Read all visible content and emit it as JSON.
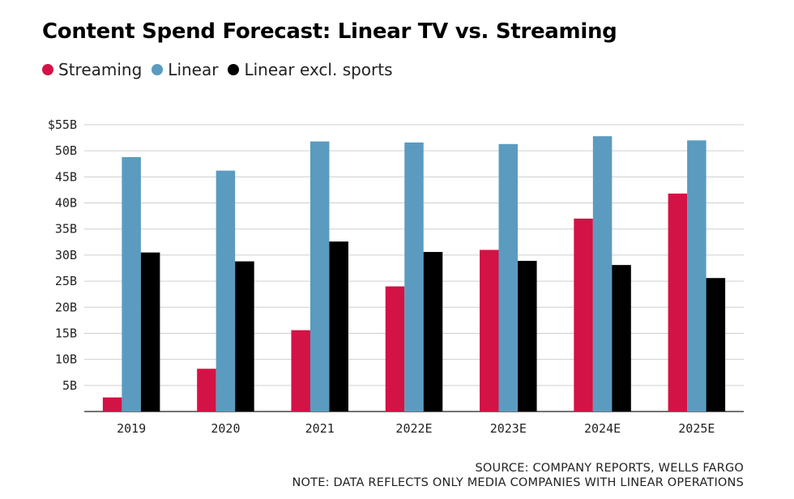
{
  "chart_data": {
    "type": "bar",
    "title": "Content Spend Forecast: Linear TV vs. Streaming",
    "categories": [
      "2019",
      "2020",
      "2021",
      "2022E",
      "2023E",
      "2024E",
      "2025E"
    ],
    "series": [
      {
        "name": "Streaming",
        "color": "#d31245",
        "values": [
          2.7,
          8.2,
          15.6,
          24.0,
          31.0,
          37.0,
          41.8
        ]
      },
      {
        "name": "Linear",
        "color": "#5b9bc0",
        "values": [
          48.8,
          46.2,
          51.8,
          51.6,
          51.3,
          52.8,
          52.0
        ]
      },
      {
        "name": "Linear excl. sports",
        "color": "#000000",
        "values": [
          30.5,
          28.8,
          32.6,
          30.6,
          28.9,
          28.1,
          25.6
        ]
      }
    ],
    "y_ticks": [
      "5B",
      "10B",
      "15B",
      "20B",
      "25B",
      "30B",
      "35B",
      "40B",
      "45B",
      "50B",
      "$55B"
    ],
    "y_tick_values": [
      5,
      10,
      15,
      20,
      25,
      30,
      35,
      40,
      45,
      50,
      55
    ],
    "ylim": [
      0,
      55
    ],
    "xlabel": "",
    "ylabel": "",
    "grid": true,
    "legend_position": "top-left"
  },
  "notes": {
    "source": "SOURCE: COMPANY REPORTS, WELLS FARGO",
    "note": "NOTE: DATA REFLECTS ONLY MEDIA COMPANIES WITH LINEAR OPERATIONS"
  }
}
